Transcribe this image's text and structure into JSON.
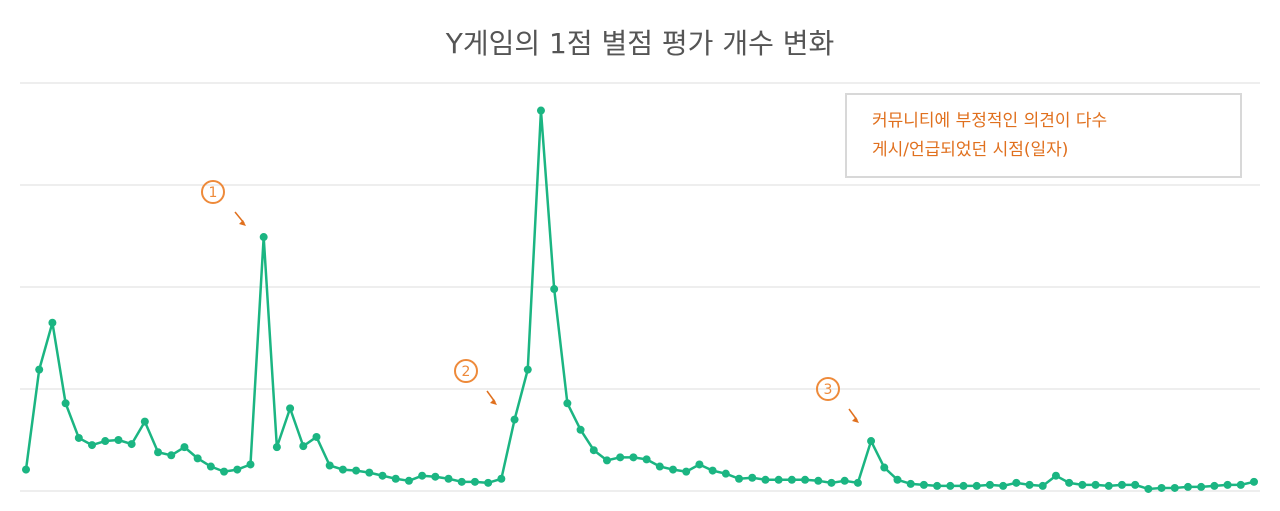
{
  "chart_data": {
    "type": "line",
    "title": "Y게임의 1점 별점 평가 개수 변화",
    "series": [
      {
        "color": "#1bb582",
        "values": [
          0.21,
          1.19,
          1.65,
          0.86,
          0.52,
          0.45,
          0.49,
          0.5,
          0.46,
          0.68,
          0.38,
          0.35,
          0.43,
          0.32,
          0.24,
          0.19,
          0.21,
          0.26,
          2.49,
          0.43,
          0.81,
          0.44,
          0.53,
          0.25,
          0.21,
          0.2,
          0.18,
          0.15,
          0.12,
          0.1,
          0.15,
          0.14,
          0.12,
          0.09,
          0.09,
          0.08,
          0.12,
          0.7,
          1.19,
          3.73,
          1.98,
          0.86,
          0.6,
          0.4,
          0.3,
          0.33,
          0.33,
          0.31,
          0.24,
          0.21,
          0.19,
          0.26,
          0.2,
          0.17,
          0.12,
          0.13,
          0.11,
          0.11,
          0.11,
          0.11,
          0.1,
          0.08,
          0.1,
          0.08,
          0.49,
          0.23,
          0.11,
          0.07,
          0.06,
          0.05,
          0.05,
          0.05,
          0.05,
          0.06,
          0.05,
          0.08,
          0.06,
          0.05,
          0.15,
          0.08,
          0.06,
          0.06,
          0.05,
          0.06,
          0.06,
          0.02,
          0.03,
          0.03,
          0.04,
          0.04,
          0.05,
          0.06,
          0.06,
          0.09
        ]
      }
    ],
    "ylim": [
      0,
      4
    ],
    "yticks": [
      0,
      1,
      2,
      3,
      4
    ],
    "grid": true,
    "tick_labels": false,
    "annotations": [
      "1",
      "2",
      "3"
    ],
    "note": [
      "커뮤니티에 부정적인 의견이 다수",
      "게시/언급되었던 시점(일자)"
    ]
  }
}
